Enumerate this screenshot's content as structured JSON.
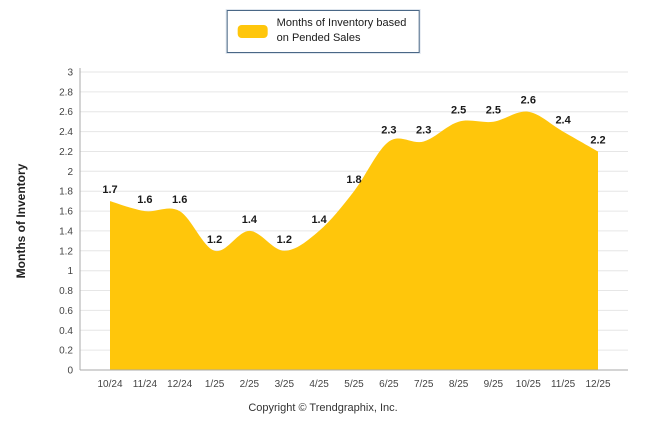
{
  "legend": {
    "line1": "Months of Inventory based",
    "line2": "on Pended Sales"
  },
  "footer": {
    "copyright": "Copyright © Trendgraphix, Inc."
  },
  "chart_data": {
    "type": "area",
    "title": "",
    "legend_label": "Months of Inventory based on Pended Sales",
    "legend_position": "top-center",
    "xlabel": "",
    "ylabel": "Months of Inventory",
    "categories": [
      "10/24",
      "11/24",
      "12/24",
      "1/25",
      "2/25",
      "3/25",
      "4/25",
      "5/25",
      "6/25",
      "7/25",
      "8/25",
      "9/25",
      "10/25",
      "11/25",
      "12/25"
    ],
    "values": [
      1.7,
      1.6,
      1.6,
      1.2,
      1.4,
      1.2,
      1.4,
      1.8,
      2.3,
      2.3,
      2.5,
      2.5,
      2.6,
      2.4,
      2.2
    ],
    "value_labels": [
      "1.7",
      "1.6",
      "1.6",
      "1.2",
      "1.4",
      "1.2",
      "1.4",
      "1.8",
      "2.3",
      "2.3",
      "2.5",
      "2.5",
      "2.6",
      "2.4",
      "2.2"
    ],
    "ylim": [
      0,
      3
    ],
    "ytick_step": 0.2,
    "yticks": [
      "0",
      "0.2",
      "0.4",
      "0.6",
      "0.8",
      "1",
      "1.2",
      "1.4",
      "1.6",
      "1.8",
      "2",
      "2.2",
      "2.4",
      "2.6",
      "2.8",
      "3"
    ],
    "grid": true,
    "colors": {
      "area_fill": "#FFC60B",
      "grid_line": "#e6e6e6",
      "axis_line": "#aaaaaa",
      "point_label": "#1a1a1a",
      "tick_text": "#444444"
    }
  }
}
